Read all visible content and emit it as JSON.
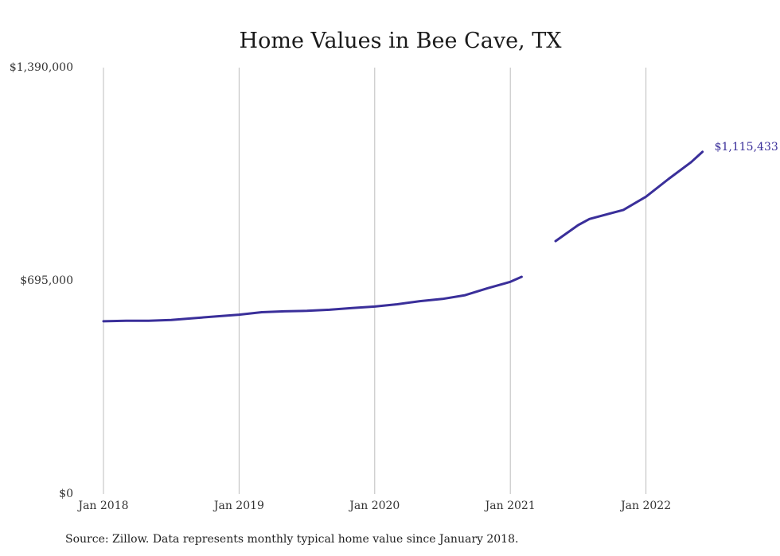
{
  "chart_data": {
    "type": "line",
    "title": "Home Values in Bee Cave, TX",
    "xlabel": "",
    "ylabel": "",
    "ylim": [
      0,
      1390000
    ],
    "y_ticks": [
      {
        "value": 0,
        "label": "$0"
      },
      {
        "value": 695000,
        "label": "$695,000"
      },
      {
        "value": 1390000,
        "label": "$1,390,000"
      }
    ],
    "x_ticks": [
      {
        "value": "2018-01",
        "label": "Jan 2018"
      },
      {
        "value": "2019-01",
        "label": "Jan 2019"
      },
      {
        "value": "2020-01",
        "label": "Jan 2020"
      },
      {
        "value": "2021-01",
        "label": "Jan 2021"
      },
      {
        "value": "2022-01",
        "label": "Jan 2022"
      }
    ],
    "grid": {
      "vertical": true,
      "horizontal": false
    },
    "line_color": "#3a2f9a",
    "end_label": "$1,115,433",
    "series": [
      {
        "segments": [
          [
            {
              "x": "2018-01",
              "y": 563000
            },
            {
              "x": "2018-03",
              "y": 564500
            },
            {
              "x": "2018-05",
              "y": 564500
            },
            {
              "x": "2018-07",
              "y": 567500
            },
            {
              "x": "2018-09",
              "y": 573000
            },
            {
              "x": "2018-11",
              "y": 579000
            },
            {
              "x": "2019-01",
              "y": 584500
            },
            {
              "x": "2019-03",
              "y": 592500
            },
            {
              "x": "2019-05",
              "y": 595500
            },
            {
              "x": "2019-07",
              "y": 597000
            },
            {
              "x": "2019-09",
              "y": 600500
            },
            {
              "x": "2019-11",
              "y": 606000
            },
            {
              "x": "2020-01",
              "y": 611000
            },
            {
              "x": "2020-03",
              "y": 618500
            },
            {
              "x": "2020-05",
              "y": 628500
            },
            {
              "x": "2020-07",
              "y": 636000
            },
            {
              "x": "2020-09",
              "y": 648000
            },
            {
              "x": "2020-11",
              "y": 671000
            },
            {
              "x": "2021-01",
              "y": 691500
            },
            {
              "x": "2021-02",
              "y": 708000
            }
          ],
          [
            {
              "x": "2021-05",
              "y": 824500
            },
            {
              "x": "2021-07",
              "y": 876500
            },
            {
              "x": "2021-08",
              "y": 896500
            },
            {
              "x": "2021-11",
              "y": 926000
            },
            {
              "x": "2022-01",
              "y": 969000
            },
            {
              "x": "2022-03",
              "y": 1027000
            },
            {
              "x": "2022-05",
              "y": 1082000
            },
            {
              "x": "2022-06",
              "y": 1115433
            }
          ]
        ]
      }
    ]
  },
  "source_note": "Source: Zillow. Data represents monthly typical home value since January 2018."
}
